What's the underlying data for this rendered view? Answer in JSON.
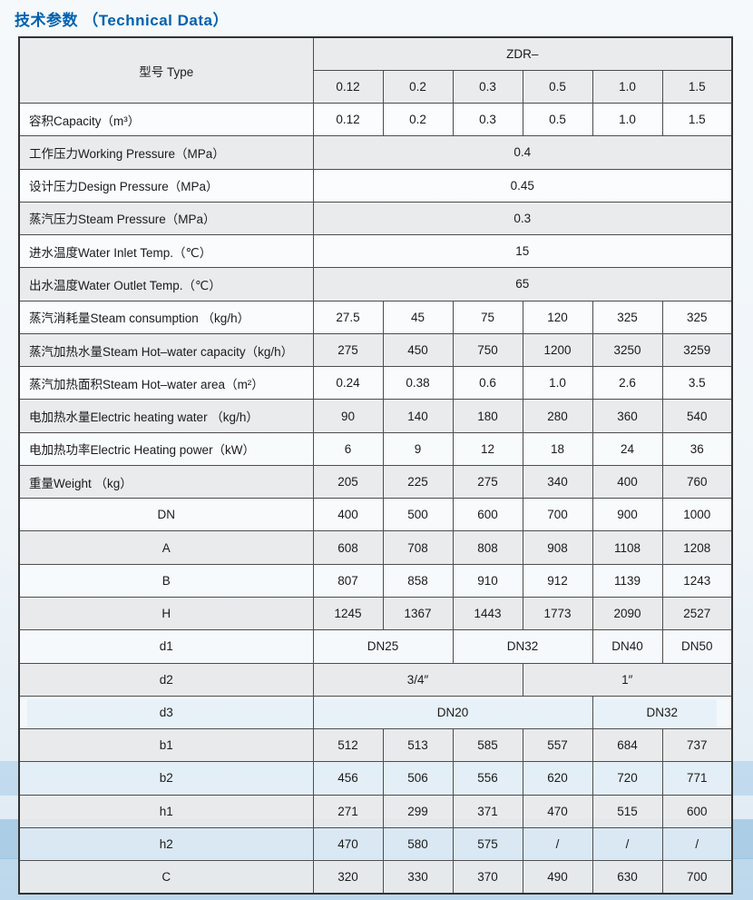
{
  "page_title": "技术参数 （Technical Data）",
  "accent_color": "#0061ae",
  "table": {
    "header": {
      "type_label": "型号 Type",
      "series_label": "ZDR–",
      "models": [
        "0.12",
        "0.2",
        "0.3",
        "0.5",
        "1.0",
        "1.5"
      ]
    },
    "rows": [
      {
        "label": "容积Capacity（m³）",
        "align": "left",
        "cells": [
          {
            "text": "0.12"
          },
          {
            "text": "0.2"
          },
          {
            "text": "0.3"
          },
          {
            "text": "0.5"
          },
          {
            "text": "1.0"
          },
          {
            "text": "1.5"
          }
        ]
      },
      {
        "label": "工作压力Working Pressure（MPa）",
        "align": "left",
        "cells": [
          {
            "text": "0.4",
            "span": 6
          }
        ]
      },
      {
        "label": "设计压力Design Pressure（MPa）",
        "align": "left",
        "cells": [
          {
            "text": "0.45",
            "span": 6
          }
        ]
      },
      {
        "label": "蒸汽压力Steam Pressure（MPa）",
        "align": "left",
        "cells": [
          {
            "text": "0.3",
            "span": 6
          }
        ]
      },
      {
        "label": "进水温度Water Inlet Temp.（℃）",
        "align": "left",
        "cells": [
          {
            "text": "15",
            "span": 6
          }
        ]
      },
      {
        "label": "出水温度Water Outlet Temp.（℃）",
        "align": "left",
        "cells": [
          {
            "text": "65",
            "span": 6
          }
        ]
      },
      {
        "label": "蒸汽消耗量Steam consumption （kg/h）",
        "align": "left",
        "cells": [
          {
            "text": "27.5"
          },
          {
            "text": "45"
          },
          {
            "text": "75"
          },
          {
            "text": "120"
          },
          {
            "text": "325"
          },
          {
            "text": "325"
          }
        ]
      },
      {
        "label": "蒸汽加热水量Steam Hot–water capacity（kg/h）",
        "align": "left",
        "cells": [
          {
            "text": "275"
          },
          {
            "text": "450"
          },
          {
            "text": "750"
          },
          {
            "text": "1200"
          },
          {
            "text": "3250"
          },
          {
            "text": "3259"
          }
        ]
      },
      {
        "label": "蒸汽加热面积Steam Hot–water area（m²）",
        "align": "left",
        "cells": [
          {
            "text": "0.24"
          },
          {
            "text": "0.38"
          },
          {
            "text": "0.6"
          },
          {
            "text": "1.0"
          },
          {
            "text": "2.6"
          },
          {
            "text": "3.5"
          }
        ]
      },
      {
        "label": "电加热水量Electric heating water （kg/h）",
        "align": "left",
        "cells": [
          {
            "text": "90"
          },
          {
            "text": "140"
          },
          {
            "text": "180"
          },
          {
            "text": "280"
          },
          {
            "text": "360"
          },
          {
            "text": "540"
          }
        ]
      },
      {
        "label": "电加热功率Electric Heating power（kW）",
        "align": "left",
        "cells": [
          {
            "text": "6"
          },
          {
            "text": "9"
          },
          {
            "text": "12"
          },
          {
            "text": "18"
          },
          {
            "text": "24"
          },
          {
            "text": "36"
          }
        ]
      },
      {
        "label": "重量Weight （kg）",
        "align": "left",
        "cells": [
          {
            "text": "205"
          },
          {
            "text": "225"
          },
          {
            "text": "275"
          },
          {
            "text": "340"
          },
          {
            "text": "400"
          },
          {
            "text": "760"
          }
        ]
      },
      {
        "label": "DN",
        "align": "center",
        "cells": [
          {
            "text": "400"
          },
          {
            "text": "500"
          },
          {
            "text": "600"
          },
          {
            "text": "700"
          },
          {
            "text": "900"
          },
          {
            "text": "1000"
          }
        ]
      },
      {
        "label": "A",
        "align": "center",
        "cells": [
          {
            "text": "608"
          },
          {
            "text": "708"
          },
          {
            "text": "808"
          },
          {
            "text": "908"
          },
          {
            "text": "1108"
          },
          {
            "text": "1208"
          }
        ]
      },
      {
        "label": "B",
        "align": "center",
        "cells": [
          {
            "text": "807"
          },
          {
            "text": "858"
          },
          {
            "text": "910"
          },
          {
            "text": "912"
          },
          {
            "text": "1139"
          },
          {
            "text": "1243"
          }
        ]
      },
      {
        "label": "H",
        "align": "center",
        "cells": [
          {
            "text": "1245"
          },
          {
            "text": "1367"
          },
          {
            "text": "1443"
          },
          {
            "text": "1773"
          },
          {
            "text": "2090"
          },
          {
            "text": "2527"
          }
        ]
      },
      {
        "label": "d1",
        "align": "center",
        "cells": [
          {
            "text": "DN25",
            "span": 2
          },
          {
            "text": "DN32",
            "span": 2
          },
          {
            "text": "DN40"
          },
          {
            "text": "DN50"
          }
        ]
      },
      {
        "label": "d2",
        "align": "center",
        "cells": [
          {
            "text": "3/4″",
            "span": 3
          },
          {
            "text": "1″",
            "span": 3
          }
        ]
      },
      {
        "label": "d3",
        "align": "center",
        "cells": [
          {
            "text": "DN20",
            "span": 4
          },
          {
            "text": "DN32",
            "span": 2
          }
        ]
      },
      {
        "label": "b1",
        "align": "center",
        "cells": [
          {
            "text": "512"
          },
          {
            "text": "513"
          },
          {
            "text": "585"
          },
          {
            "text": "557"
          },
          {
            "text": "684"
          },
          {
            "text": "737"
          }
        ]
      },
      {
        "label": "b2",
        "align": "center",
        "cells": [
          {
            "text": "456"
          },
          {
            "text": "506"
          },
          {
            "text": "556"
          },
          {
            "text": "620"
          },
          {
            "text": "720"
          },
          {
            "text": "771"
          }
        ]
      },
      {
        "label": "h1",
        "align": "center",
        "cells": [
          {
            "text": "271"
          },
          {
            "text": "299"
          },
          {
            "text": "371"
          },
          {
            "text": "470"
          },
          {
            "text": "515"
          },
          {
            "text": "600"
          }
        ]
      },
      {
        "label": "h2",
        "align": "center",
        "cells": [
          {
            "text": "470"
          },
          {
            "text": "580"
          },
          {
            "text": "575"
          },
          {
            "text": "/"
          },
          {
            "text": "/"
          },
          {
            "text": "/"
          }
        ]
      },
      {
        "label": "C",
        "align": "center",
        "cells": [
          {
            "text": "320"
          },
          {
            "text": "330"
          },
          {
            "text": "370"
          },
          {
            "text": "490"
          },
          {
            "text": "630"
          },
          {
            "text": "700"
          }
        ]
      }
    ]
  }
}
